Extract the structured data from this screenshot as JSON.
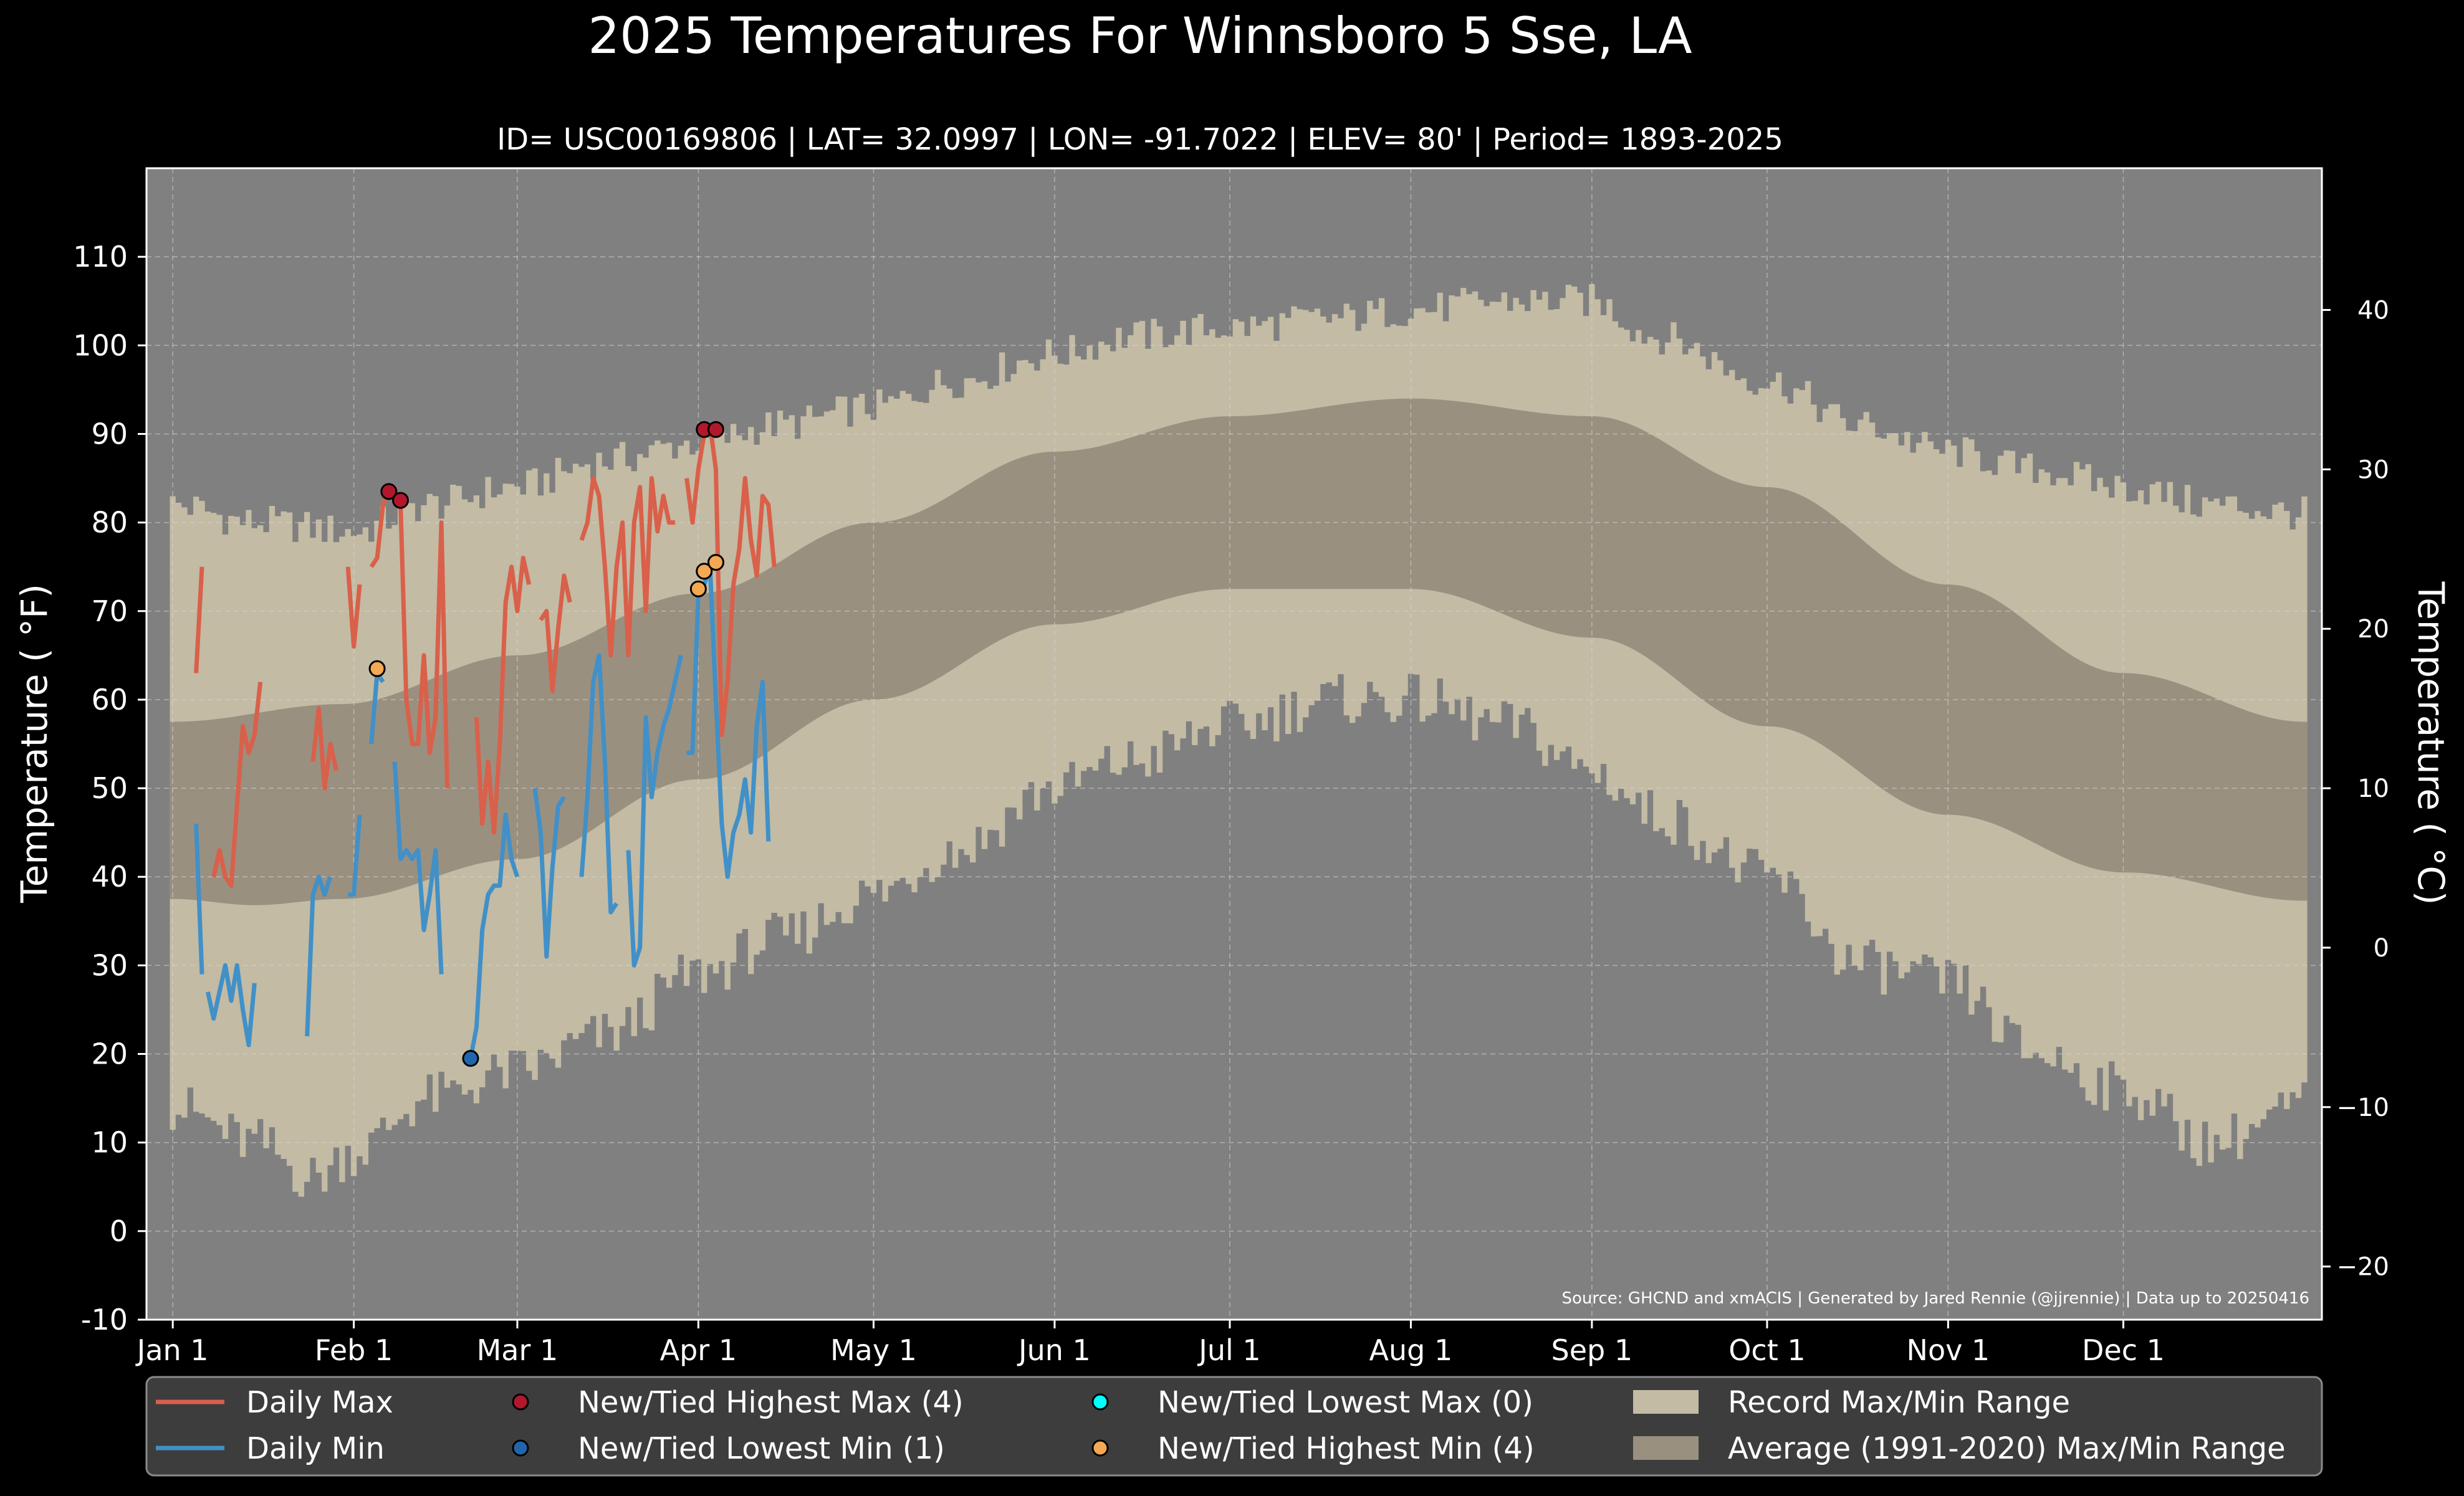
{
  "chart_data": {
    "type": "line",
    "title": "2025 Temperatures For Winnsboro 5 Sse, LA",
    "subtitle": "ID= USC00169806 | LAT= 32.0997 | LON= -91.7022 | ELEV= 80' | Period= 1893-2025",
    "ylabel": "Temperature ( °F)",
    "ylabel_right": "Temperature ( °C)",
    "ylim": [
      -10,
      120
    ],
    "y_ticks": [
      -10,
      0,
      10,
      20,
      30,
      40,
      50,
      60,
      70,
      80,
      90,
      100,
      110
    ],
    "y2_ticks": [
      -20,
      -10,
      0,
      10,
      20,
      30,
      40
    ],
    "x_ticks": [
      {
        "label": "Jan 1",
        "day": 1
      },
      {
        "label": "Feb 1",
        "day": 32
      },
      {
        "label": "Mar 1",
        "day": 60
      },
      {
        "label": "Apr 1",
        "day": 91
      },
      {
        "label": "May 1",
        "day": 121
      },
      {
        "label": "Jun 1",
        "day": 152
      },
      {
        "label": "Jul 1",
        "day": 182
      },
      {
        "label": "Aug 1",
        "day": 213
      },
      {
        "label": "Sep 1",
        "day": 244
      },
      {
        "label": "Oct 1",
        "day": 274
      },
      {
        "label": "Nov 1",
        "day": 305
      },
      {
        "label": "Dec 1",
        "day": 335
      }
    ],
    "xlim": [
      -3.5,
      369
    ],
    "grid": true,
    "source": "Source: GHCND and xmACIS | Generated by Jared Rennie (@jjrennie) | Data up to 20250416",
    "record_max_profile": [
      [
        1,
        82
      ],
      [
        15,
        80
      ],
      [
        32,
        79
      ],
      [
        45,
        82
      ],
      [
        60,
        84
      ],
      [
        75,
        87
      ],
      [
        91,
        89
      ],
      [
        105,
        91
      ],
      [
        121,
        93
      ],
      [
        135,
        96
      ],
      [
        152,
        99
      ],
      [
        165,
        101
      ],
      [
        182,
        102
      ],
      [
        200,
        103
      ],
      [
        213,
        104
      ],
      [
        230,
        105
      ],
      [
        244,
        105
      ],
      [
        255,
        101
      ],
      [
        274,
        96
      ],
      [
        290,
        91
      ],
      [
        305,
        88
      ],
      [
        320,
        86
      ],
      [
        335,
        84
      ],
      [
        350,
        82
      ],
      [
        366,
        81
      ]
    ],
    "record_min_profile": [
      [
        1,
        14
      ],
      [
        15,
        10
      ],
      [
        25,
        6
      ],
      [
        32,
        9
      ],
      [
        45,
        15
      ],
      [
        60,
        18
      ],
      [
        75,
        22
      ],
      [
        91,
        29
      ],
      [
        105,
        33
      ],
      [
        121,
        38
      ],
      [
        135,
        43
      ],
      [
        152,
        50
      ],
      [
        165,
        53
      ],
      [
        182,
        57
      ],
      [
        200,
        60
      ],
      [
        213,
        60
      ],
      [
        230,
        57
      ],
      [
        244,
        52
      ],
      [
        255,
        47
      ],
      [
        274,
        40
      ],
      [
        290,
        30
      ],
      [
        305,
        28
      ],
      [
        320,
        20
      ],
      [
        335,
        16
      ],
      [
        350,
        10
      ],
      [
        366,
        14
      ]
    ],
    "average_max_profile": [
      [
        1,
        57.5
      ],
      [
        30,
        59.5
      ],
      [
        60,
        65
      ],
      [
        91,
        72
      ],
      [
        121,
        80
      ],
      [
        152,
        88
      ],
      [
        182,
        92
      ],
      [
        213,
        94
      ],
      [
        244,
        92
      ],
      [
        274,
        84
      ],
      [
        305,
        73
      ],
      [
        335,
        63
      ],
      [
        366,
        57.5
      ]
    ],
    "average_min_profile": [
      [
        1,
        37.5
      ],
      [
        15,
        36.8
      ],
      [
        30,
        37.5
      ],
      [
        60,
        42
      ],
      [
        91,
        51
      ],
      [
        121,
        60
      ],
      [
        152,
        68.5
      ],
      [
        182,
        72.5
      ],
      [
        213,
        72.5
      ],
      [
        244,
        67
      ],
      [
        274,
        57
      ],
      [
        305,
        47
      ],
      [
        335,
        40.5
      ],
      [
        366,
        37.3
      ]
    ],
    "series": [
      {
        "name": "Daily Max",
        "color": "#d9604a",
        "values": [
          [
            5,
            63
          ],
          [
            6,
            75
          ],
          null,
          [
            8,
            40
          ],
          [
            9,
            43
          ],
          [
            10,
            40
          ],
          [
            11,
            39
          ],
          [
            12,
            48
          ],
          [
            13,
            57
          ],
          [
            14,
            54
          ],
          [
            15,
            56
          ],
          [
            16,
            62
          ],
          null,
          [
            25,
            53
          ],
          [
            26,
            59
          ],
          [
            27,
            50
          ],
          [
            28,
            55
          ],
          [
            29,
            52
          ],
          null,
          [
            31,
            75
          ],
          [
            32,
            66
          ],
          [
            33,
            73
          ],
          null,
          [
            35,
            75
          ],
          [
            36,
            76
          ],
          [
            37,
            82
          ],
          [
            38,
            84
          ],
          [
            39,
            83
          ],
          [
            40,
            82
          ],
          [
            41,
            60
          ],
          [
            42,
            55
          ],
          [
            43,
            55
          ],
          [
            44,
            65
          ],
          [
            45,
            54
          ],
          [
            46,
            58
          ],
          [
            47,
            80
          ],
          [
            48,
            50
          ],
          null,
          [
            53,
            58
          ],
          [
            54,
            46
          ],
          [
            55,
            53
          ],
          [
            56,
            45
          ],
          [
            57,
            55
          ],
          [
            58,
            71
          ],
          [
            59,
            75
          ],
          [
            60,
            70
          ],
          [
            61,
            76
          ],
          [
            62,
            73
          ],
          null,
          [
            64,
            69
          ],
          [
            65,
            70
          ],
          [
            66,
            61
          ],
          [
            67,
            68
          ],
          [
            68,
            74
          ],
          [
            69,
            71
          ],
          null,
          [
            71,
            78
          ],
          [
            72,
            80
          ],
          [
            73,
            85
          ],
          [
            74,
            83
          ],
          [
            75,
            75
          ],
          [
            76,
            65
          ],
          [
            77,
            75
          ],
          [
            78,
            80
          ],
          [
            79,
            65
          ],
          [
            80,
            80
          ],
          [
            81,
            84
          ],
          [
            82,
            70
          ],
          [
            83,
            85
          ],
          [
            84,
            79
          ],
          [
            85,
            83
          ],
          [
            86,
            80
          ],
          [
            87,
            80
          ],
          null,
          [
            89,
            85
          ],
          [
            90,
            80
          ],
          [
            91,
            86
          ],
          [
            92,
            90
          ],
          [
            93,
            91
          ],
          [
            94,
            86
          ],
          [
            95,
            56
          ],
          [
            96,
            62
          ],
          [
            97,
            73
          ],
          [
            98,
            77
          ],
          [
            99,
            85
          ],
          [
            100,
            78
          ],
          [
            101,
            74
          ],
          [
            102,
            83
          ],
          [
            103,
            82
          ],
          [
            104,
            75
          ]
        ]
      },
      {
        "name": "Daily Min",
        "color": "#4190c8",
        "values": [
          [
            5,
            46
          ],
          [
            6,
            29
          ],
          null,
          [
            7,
            27
          ],
          [
            8,
            24
          ],
          [
            9,
            27
          ],
          [
            10,
            30
          ],
          [
            11,
            26
          ],
          [
            12,
            30
          ],
          [
            13,
            25
          ],
          [
            14,
            21
          ],
          [
            15,
            28
          ],
          null,
          [
            24,
            22
          ],
          [
            25,
            38
          ],
          [
            26,
            40
          ],
          [
            27,
            38
          ],
          [
            28,
            40
          ],
          null,
          [
            31,
            38
          ],
          [
            32,
            38
          ],
          [
            33,
            47
          ],
          null,
          [
            35,
            55
          ],
          [
            36,
            63
          ],
          [
            37,
            62
          ],
          null,
          [
            39,
            53
          ],
          [
            40,
            42
          ],
          [
            41,
            43
          ],
          [
            42,
            42
          ],
          [
            43,
            43
          ],
          [
            44,
            34
          ],
          [
            45,
            38
          ],
          [
            46,
            43
          ],
          [
            47,
            29
          ],
          null,
          [
            52,
            19.5
          ],
          [
            53,
            23
          ],
          [
            54,
            34
          ],
          [
            55,
            38
          ],
          [
            56,
            39
          ],
          [
            57,
            39
          ],
          [
            58,
            47
          ],
          [
            59,
            42
          ],
          [
            60,
            40
          ],
          null,
          [
            63,
            50
          ],
          [
            64,
            45
          ],
          [
            65,
            31
          ],
          [
            66,
            41
          ],
          [
            67,
            48
          ],
          [
            68,
            49
          ],
          null,
          [
            71,
            40
          ],
          [
            72,
            49
          ],
          [
            73,
            62
          ],
          [
            74,
            65
          ],
          [
            75,
            53
          ],
          [
            76,
            36
          ],
          [
            77,
            37
          ],
          null,
          [
            79,
            43
          ],
          [
            80,
            30
          ],
          [
            81,
            32
          ],
          [
            82,
            58
          ],
          [
            83,
            49
          ],
          [
            84,
            54
          ],
          [
            85,
            57
          ],
          [
            86,
            59
          ],
          [
            87,
            62
          ],
          [
            88,
            65
          ],
          null,
          [
            89,
            54
          ],
          [
            90,
            54
          ],
          [
            91,
            72
          ],
          [
            92,
            73
          ],
          [
            93,
            75
          ],
          [
            94,
            60
          ],
          [
            95,
            46
          ],
          [
            96,
            40
          ],
          [
            97,
            45
          ],
          [
            98,
            47
          ],
          [
            99,
            51
          ],
          [
            100,
            45
          ],
          [
            101,
            57
          ],
          [
            102,
            62
          ],
          [
            103,
            44
          ]
        ]
      }
    ],
    "record_markers": [
      {
        "name": "New/Tied Highest Max",
        "color": "#b2182b",
        "points": [
          [
            38,
            83.5
          ],
          [
            40,
            82.5
          ],
          [
            92,
            90.5
          ],
          [
            94,
            90.5
          ]
        ]
      },
      {
        "name": "New/Tied Lowest Min",
        "color": "#2166ac",
        "points": [
          [
            52,
            19.5
          ]
        ]
      },
      {
        "name": "New/Tied Lowest Max",
        "color": "#00ffff",
        "points": []
      },
      {
        "name": "New/Tied Highest Min",
        "color": "#f4a852",
        "points": [
          [
            36,
            63.5
          ],
          [
            91,
            72.5
          ],
          [
            92,
            74.5
          ],
          [
            94,
            75.5
          ]
        ]
      }
    ],
    "legend": {
      "placement": "bottom",
      "items": [
        {
          "label": "Daily Max",
          "kind": "line",
          "color": "#d9604a"
        },
        {
          "label": "New/Tied Highest Max (4)",
          "kind": "marker",
          "color": "#b2182b"
        },
        {
          "label": "New/Tied Lowest Max (0)",
          "kind": "marker",
          "color": "#00ffff"
        },
        {
          "label": "Record Max/Min Range",
          "kind": "patch",
          "color": "#c3bba4"
        },
        {
          "label": "Daily Min",
          "kind": "line",
          "color": "#4190c8"
        },
        {
          "label": "New/Tied Lowest Min (1)",
          "kind": "marker",
          "color": "#2166ac"
        },
        {
          "label": "New/Tied Highest Min (4)",
          "kind": "marker",
          "color": "#f4a852"
        },
        {
          "label": "Average (1991-2020) Max/Min Range",
          "kind": "patch",
          "color": "#9a9080"
        }
      ]
    },
    "colors": {
      "background": "#000000",
      "plot_background": "#808080",
      "record_range": "#c3bba4",
      "average_range": "#9a9080",
      "legend_background": "#3d3d3d",
      "text": "#ffffff"
    }
  }
}
